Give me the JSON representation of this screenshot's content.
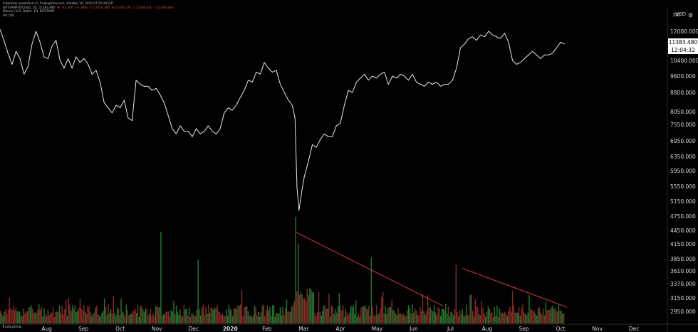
{
  "header": {
    "line1": "kikokakoki published on TradingView.com, October 16, 2020 07:55:29 EDT",
    "line2_symbol": "BITSTAMP:BTCUSD, 1D",
    "line2_values": [
      "11383.480",
      "▼",
      "-44.300",
      "(-0.39%)",
      "O:11424.360",
      "H:11440.370",
      "L:11360.040",
      "C:11383.480"
    ],
    "line3": "Bitcoin / U.S. Dollar, 1D, BITSTAMP",
    "line4": "Vol (20)"
  },
  "axis": {
    "currency": "USD",
    "top_tick_partial": "13(",
    "gear_icon": "gear-icon",
    "price_label": "11383.480",
    "timer_label": "12:04:32",
    "brand": "TradingView"
  },
  "colors": {
    "background": "#000000",
    "price_line": "#e8e8e8",
    "trend_line": "#d83b3b",
    "vol_up": "#1f7a2c",
    "vol_down": "#8a2a2a"
  },
  "chart_data": {
    "type": "line",
    "title": "",
    "xlabel": "",
    "ylabel": "",
    "ylim": [
      2950,
      13500
    ],
    "y_ticks": [
      {
        "v": 12000,
        "label": "12000.000"
      },
      {
        "v": 10400,
        "label": "10400.000"
      },
      {
        "v": 9600,
        "label": "9600.000"
      },
      {
        "v": 8800,
        "label": "8800.000"
      },
      {
        "v": 8050,
        "label": "8050.000"
      },
      {
        "v": 7550,
        "label": "7550.000"
      },
      {
        "v": 6950,
        "label": "6950.000"
      },
      {
        "v": 6350,
        "label": "6350.000"
      },
      {
        "v": 5950,
        "label": "5950.000"
      },
      {
        "v": 5550,
        "label": "5550.000"
      },
      {
        "v": 5150,
        "label": "5150.000"
      },
      {
        "v": 4750,
        "label": "4750.000"
      },
      {
        "v": 4450,
        "label": "4450.000"
      },
      {
        "v": 4150,
        "label": "4150.000"
      },
      {
        "v": 3850,
        "label": "3850.000"
      },
      {
        "v": 3610,
        "label": "3610.000"
      },
      {
        "v": 3370,
        "label": "3370.000"
      },
      {
        "v": 3150,
        "label": "3150.000"
      },
      {
        "v": 2950,
        "label": "2950.000"
      }
    ],
    "x_ticks": [
      {
        "label": "Aug",
        "t": 0.07
      },
      {
        "label": "Sep",
        "t": 0.125
      },
      {
        "label": "Oct",
        "t": 0.18
      },
      {
        "label": "Nov",
        "t": 0.235
      },
      {
        "label": "Dec",
        "t": 0.29
      },
      {
        "label": "2020",
        "t": 0.345,
        "year": true
      },
      {
        "label": "Feb",
        "t": 0.4
      },
      {
        "label": "Mar",
        "t": 0.455
      },
      {
        "label": "Apr",
        "t": 0.51
      },
      {
        "label": "May",
        "t": 0.565
      },
      {
        "label": "Jun",
        "t": 0.62
      },
      {
        "label": "Jul",
        "t": 0.675
      },
      {
        "label": "Aug",
        "t": 0.73
      },
      {
        "label": "Sep",
        "t": 0.785
      },
      {
        "label": "Oct",
        "t": 0.84
      },
      {
        "label": "Nov",
        "t": 0.895
      },
      {
        "label": "Dec",
        "t": 0.95
      }
    ],
    "price_series": {
      "name": "BTCUSD",
      "points": [
        [
          0.0,
          12100
        ],
        [
          0.006,
          11500
        ],
        [
          0.012,
          10800
        ],
        [
          0.018,
          10200
        ],
        [
          0.024,
          10900
        ],
        [
          0.03,
          10500
        ],
        [
          0.036,
          9700
        ],
        [
          0.042,
          10100
        ],
        [
          0.048,
          11300
        ],
        [
          0.054,
          12000
        ],
        [
          0.06,
          11400
        ],
        [
          0.066,
          10600
        ],
        [
          0.072,
          10500
        ],
        [
          0.078,
          11200
        ],
        [
          0.084,
          11500
        ],
        [
          0.09,
          10400
        ],
        [
          0.096,
          10000
        ],
        [
          0.102,
          10500
        ],
        [
          0.108,
          10000
        ],
        [
          0.114,
          10600
        ],
        [
          0.12,
          10300
        ],
        [
          0.126,
          10500
        ],
        [
          0.132,
          10200
        ],
        [
          0.138,
          9700
        ],
        [
          0.144,
          9900
        ],
        [
          0.15,
          9300
        ],
        [
          0.156,
          8400
        ],
        [
          0.162,
          8200
        ],
        [
          0.168,
          8000
        ],
        [
          0.174,
          8300
        ],
        [
          0.18,
          8200
        ],
        [
          0.186,
          8500
        ],
        [
          0.192,
          7800
        ],
        [
          0.198,
          7700
        ],
        [
          0.204,
          9400
        ],
        [
          0.21,
          9200
        ],
        [
          0.216,
          9100
        ],
        [
          0.222,
          9100
        ],
        [
          0.228,
          8900
        ],
        [
          0.234,
          9000
        ],
        [
          0.24,
          8700
        ],
        [
          0.246,
          8400
        ],
        [
          0.252,
          7900
        ],
        [
          0.258,
          7400
        ],
        [
          0.264,
          7200
        ],
        [
          0.27,
          7500
        ],
        [
          0.276,
          7300
        ],
        [
          0.282,
          7300
        ],
        [
          0.288,
          7100
        ],
        [
          0.294,
          7400
        ],
        [
          0.3,
          7200
        ],
        [
          0.306,
          7300
        ],
        [
          0.312,
          7500
        ],
        [
          0.318,
          7300
        ],
        [
          0.324,
          7200
        ],
        [
          0.33,
          7400
        ],
        [
          0.336,
          8000
        ],
        [
          0.342,
          8200
        ],
        [
          0.348,
          8100
        ],
        [
          0.354,
          8300
        ],
        [
          0.36,
          8600
        ],
        [
          0.366,
          8900
        ],
        [
          0.372,
          9400
        ],
        [
          0.378,
          9300
        ],
        [
          0.384,
          9800
        ],
        [
          0.39,
          9700
        ],
        [
          0.396,
          10300
        ],
        [
          0.402,
          10000
        ],
        [
          0.408,
          9800
        ],
        [
          0.414,
          9900
        ],
        [
          0.42,
          9200
        ],
        [
          0.426,
          8800
        ],
        [
          0.432,
          8500
        ],
        [
          0.438,
          8300
        ],
        [
          0.442,
          7800
        ],
        [
          0.445,
          5500
        ],
        [
          0.448,
          4900
        ],
        [
          0.452,
          5400
        ],
        [
          0.456,
          5800
        ],
        [
          0.462,
          6200
        ],
        [
          0.468,
          6800
        ],
        [
          0.474,
          6700
        ],
        [
          0.48,
          7000
        ],
        [
          0.486,
          7200
        ],
        [
          0.492,
          7100
        ],
        [
          0.498,
          7100
        ],
        [
          0.504,
          7500
        ],
        [
          0.51,
          7600
        ],
        [
          0.516,
          8300
        ],
        [
          0.522,
          8900
        ],
        [
          0.528,
          8800
        ],
        [
          0.534,
          9300
        ],
        [
          0.54,
          9500
        ],
        [
          0.546,
          9700
        ],
        [
          0.552,
          9400
        ],
        [
          0.558,
          9600
        ],
        [
          0.564,
          9500
        ],
        [
          0.57,
          9700
        ],
        [
          0.576,
          9800
        ],
        [
          0.582,
          9200
        ],
        [
          0.588,
          9600
        ],
        [
          0.594,
          9500
        ],
        [
          0.6,
          9700
        ],
        [
          0.606,
          9600
        ],
        [
          0.612,
          9400
        ],
        [
          0.618,
          9700
        ],
        [
          0.624,
          9300
        ],
        [
          0.63,
          9200
        ],
        [
          0.636,
          9100
        ],
        [
          0.642,
          9300
        ],
        [
          0.648,
          9200
        ],
        [
          0.654,
          9300
        ],
        [
          0.66,
          9100
        ],
        [
          0.666,
          9200
        ],
        [
          0.672,
          9200
        ],
        [
          0.678,
          9400
        ],
        [
          0.684,
          10000
        ],
        [
          0.69,
          11100
        ],
        [
          0.696,
          11300
        ],
        [
          0.702,
          11600
        ],
        [
          0.708,
          11700
        ],
        [
          0.714,
          11500
        ],
        [
          0.72,
          11800
        ],
        [
          0.726,
          11700
        ],
        [
          0.732,
          12000
        ],
        [
          0.738,
          11800
        ],
        [
          0.744,
          11700
        ],
        [
          0.75,
          11600
        ],
        [
          0.756,
          11900
        ],
        [
          0.762,
          11400
        ],
        [
          0.768,
          10400
        ],
        [
          0.774,
          10200
        ],
        [
          0.78,
          10300
        ],
        [
          0.786,
          10500
        ],
        [
          0.792,
          10700
        ],
        [
          0.798,
          10900
        ],
        [
          0.804,
          10700
        ],
        [
          0.81,
          10500
        ],
        [
          0.816,
          10700
        ],
        [
          0.822,
          10700
        ],
        [
          0.828,
          10800
        ],
        [
          0.834,
          11100
        ],
        [
          0.84,
          11400
        ],
        [
          0.846,
          11300
        ]
      ]
    },
    "volume_series": {
      "name": "Vol",
      "count": 440,
      "spikes": [
        {
          "t": 0.24,
          "level": 0.86
        },
        {
          "t": 0.296,
          "level": 0.6
        },
        {
          "t": 0.442,
          "level": 1.0
        },
        {
          "t": 0.446,
          "level": 0.75
        },
        {
          "t": 0.556,
          "level": 0.62
        },
        {
          "t": 0.683,
          "level": 0.55
        }
      ]
    },
    "trendlines": [
      {
        "from": [
          0.442,
          4420
        ],
        "to": [
          0.664,
          3030
        ]
      },
      {
        "from": [
          0.693,
          3660
        ],
        "to": [
          0.85,
          3010
        ]
      }
    ]
  }
}
